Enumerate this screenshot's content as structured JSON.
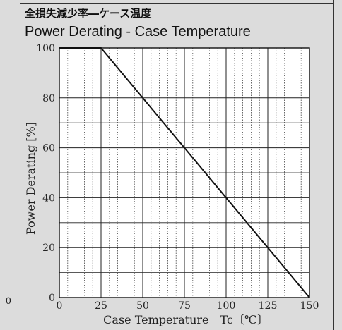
{
  "left_edge_label": "0",
  "chart_data": {
    "type": "line",
    "title": "全損失減少率―ケース温度",
    "subtitle": "Power Derating - Case Temperature",
    "xlabel": "Case Temperature　Tc〔℃〕",
    "ylabel": "Power Derating [%]",
    "xlim": [
      0,
      150
    ],
    "ylim": [
      0,
      100
    ],
    "x_ticks": [
      0,
      25,
      50,
      75,
      100,
      125,
      150
    ],
    "y_ticks": [
      0,
      20,
      40,
      60,
      80,
      100
    ],
    "grid": true,
    "series": [
      {
        "x": [
          0,
          25,
          150
        ],
        "y": [
          100,
          100,
          0
        ]
      }
    ],
    "colors": {
      "line": "#111111",
      "grid_major": "#222222",
      "grid_minor": "#444444",
      "plot_bg": "#ffffff"
    }
  }
}
